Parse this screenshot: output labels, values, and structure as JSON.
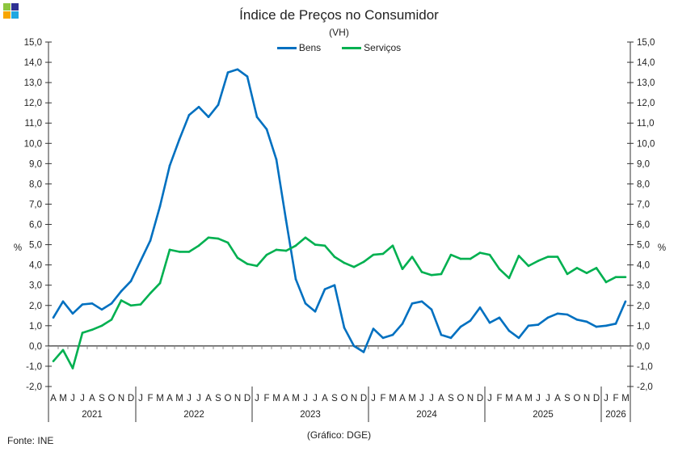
{
  "logo_colors": [
    "#8dc63f",
    "#2e3192",
    "#f7a600",
    "#1ea7e1"
  ],
  "source": "Fonte: INE",
  "credit": "(Gráfico: DGE)",
  "chart_data": {
    "type": "line",
    "title": "Índice de Preços no Consumidor",
    "subtitle": "(VH)",
    "ylabel": "%",
    "ylabel_right": "%",
    "ylim": [
      -2,
      15
    ],
    "ytick_step": 1,
    "yticks": [
      "-2,0",
      "-1,0",
      "0,0",
      "1,0",
      "2,0",
      "3,0",
      "4,0",
      "5,0",
      "6,0",
      "7,0",
      "8,0",
      "9,0",
      "10,0",
      "11,0",
      "12,0",
      "13,0",
      "14,0",
      "15,0"
    ],
    "legend_position": "top-center",
    "grid": false,
    "x": [
      "A",
      "M",
      "J",
      "J",
      "A",
      "S",
      "O",
      "N",
      "D",
      "J",
      "F",
      "M",
      "A",
      "M",
      "J",
      "J",
      "A",
      "S",
      "O",
      "N",
      "D",
      "J",
      "F",
      "M",
      "A",
      "M",
      "J",
      "J",
      "A",
      "S",
      "O",
      "N",
      "D",
      "J",
      "F",
      "M",
      "A",
      "M",
      "J",
      "J",
      "A",
      "S",
      "O",
      "N",
      "D",
      "J",
      "F",
      "M",
      "A",
      "M",
      "J",
      "J",
      "A",
      "S",
      "O",
      "N",
      "D",
      "J",
      "F",
      "M"
    ],
    "years": [
      {
        "label": "2021",
        "months": 9
      },
      {
        "label": "2022",
        "months": 12
      },
      {
        "label": "2023",
        "months": 12
      },
      {
        "label": "2024",
        "months": 12
      },
      {
        "label": "2025",
        "months": 12
      },
      {
        "label": "2026",
        "months": 3
      }
    ],
    "series": [
      {
        "name": "Bens",
        "color": "#0070c0",
        "values": [
          1.4,
          2.2,
          1.6,
          2.05,
          2.1,
          1.8,
          2.1,
          2.7,
          3.2,
          4.2,
          5.2,
          6.9,
          8.9,
          10.2,
          11.4,
          11.8,
          11.3,
          11.9,
          13.5,
          13.65,
          13.3,
          11.3,
          10.7,
          9.2,
          6.2,
          3.3,
          2.1,
          1.7,
          2.8,
          3.0,
          0.9,
          0.0,
          -0.3,
          0.85,
          0.4,
          0.55,
          1.1,
          2.1,
          2.2,
          1.8,
          0.55,
          0.4,
          0.95,
          1.25,
          1.9,
          1.15,
          1.4,
          0.75,
          0.4,
          1.0,
          1.05,
          1.4,
          1.6,
          1.55,
          1.3,
          1.2,
          0.95,
          1.0,
          1.1,
          2.2
        ]
      },
      {
        "name": "Serviços",
        "color": "#00b050",
        "values": [
          -0.75,
          -0.2,
          -1.1,
          0.65,
          0.8,
          1.0,
          1.3,
          2.25,
          2.0,
          2.05,
          2.6,
          3.1,
          4.75,
          4.65,
          4.65,
          4.95,
          5.35,
          5.3,
          5.1,
          4.35,
          4.05,
          3.95,
          4.5,
          4.75,
          4.7,
          4.95,
          5.35,
          5.0,
          4.95,
          4.4,
          4.1,
          3.9,
          4.15,
          4.5,
          4.55,
          4.95,
          3.8,
          4.4,
          3.65,
          3.5,
          3.55,
          4.5,
          4.3,
          4.3,
          4.6,
          4.5,
          3.8,
          3.35,
          4.45,
          3.95,
          4.2,
          4.4,
          4.4,
          3.55,
          3.85,
          3.6,
          3.85,
          3.15,
          3.4,
          3.4
        ]
      }
    ]
  }
}
